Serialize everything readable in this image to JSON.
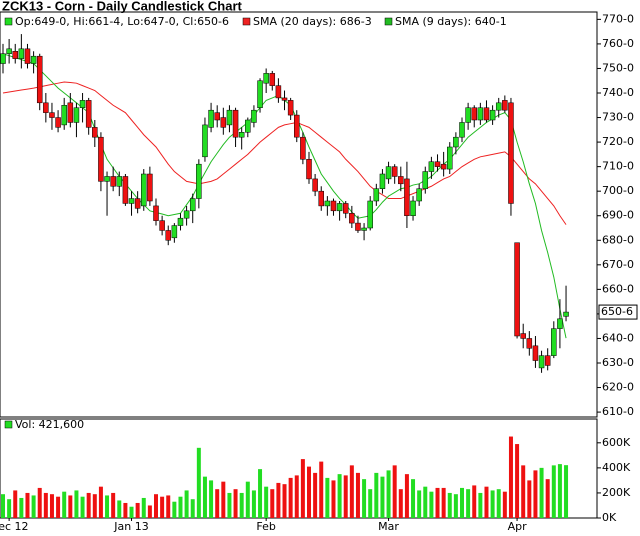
{
  "chart_data": [
    {
      "type": "candlestick",
      "title": "ZCK13 - Corn - Daily Candlestick Chart",
      "ohlc_label": "Op:649-0, Hi:661-4, Lo:647-0, Cl:650-6",
      "categories": [
        null,
        "Dec 12",
        null,
        null,
        null,
        null,
        null,
        null,
        null,
        null,
        null,
        null,
        null,
        null,
        null,
        null,
        null,
        null,
        null,
        null,
        null,
        "Jan 13",
        null,
        null,
        null,
        null,
        null,
        null,
        null,
        null,
        null,
        null,
        null,
        null,
        null,
        null,
        null,
        null,
        null,
        null,
        null,
        null,
        null,
        "Feb",
        null,
        null,
        null,
        null,
        null,
        null,
        null,
        null,
        null,
        null,
        null,
        null,
        null,
        null,
        null,
        null,
        null,
        null,
        null,
        "Mar",
        null,
        null,
        null,
        null,
        null,
        null,
        null,
        null,
        null,
        null,
        null,
        null,
        null,
        null,
        null,
        null,
        null,
        null,
        null,
        null,
        "Apr",
        null,
        null,
        null,
        null,
        null,
        null,
        null,
        null
      ],
      "open": [
        752,
        756,
        757,
        754,
        758,
        752,
        755,
        736,
        732,
        730,
        727,
        736,
        728,
        734,
        737,
        726,
        722,
        704,
        706,
        702,
        706,
        695,
        697,
        694,
        707,
        694,
        688,
        684,
        681,
        686,
        689,
        692,
        697,
        714,
        726,
        732,
        730,
        727,
        733,
        722,
        724,
        728,
        734,
        744,
        748,
        743,
        738,
        737,
        731,
        722,
        713,
        705,
        700,
        694,
        696,
        692,
        695,
        691,
        687,
        684,
        685,
        696,
        701,
        705,
        710,
        706,
        705,
        690,
        696,
        701,
        708,
        712,
        711,
        709,
        718,
        722,
        728,
        734,
        729,
        734,
        729,
        733,
        737,
        736,
        679,
        642,
        640,
        637,
        628,
        633,
        633,
        644,
        649
      ],
      "high": [
        760,
        762,
        760,
        764,
        760,
        757,
        756,
        740,
        736,
        733,
        738,
        740,
        736,
        740,
        738,
        729,
        724,
        708,
        710,
        708,
        707,
        700,
        700,
        709,
        710,
        697,
        690,
        686,
        687,
        691,
        694,
        699,
        713,
        730,
        736,
        735,
        734,
        735,
        734,
        726,
        730,
        735,
        746,
        750,
        749,
        746,
        741,
        738,
        733,
        724,
        716,
        707,
        702,
        698,
        697,
        696,
        696,
        694,
        690,
        687,
        698,
        703,
        709,
        712,
        711,
        710,
        712,
        698,
        703,
        710,
        714,
        715,
        716,
        720,
        724,
        730,
        736,
        735,
        736,
        737,
        735,
        738,
        739,
        738,
        679,
        646,
        643,
        641,
        635,
        636,
        647,
        656,
        661.5
      ],
      "low": [
        748,
        752,
        752,
        750,
        750,
        748,
        733,
        728,
        725,
        724,
        725,
        726,
        722,
        728,
        723,
        718,
        700,
        690,
        700,
        698,
        694,
        690,
        691,
        692,
        694,
        686,
        682,
        678,
        679,
        684,
        686,
        687,
        693,
        712,
        724,
        726,
        723,
        724,
        718,
        717,
        722,
        726,
        732,
        740,
        741,
        736,
        733,
        729,
        720,
        711,
        703,
        698,
        692,
        690,
        690,
        688,
        689,
        685,
        683,
        680,
        684,
        694,
        699,
        703,
        703,
        700,
        685,
        688,
        694,
        699,
        705,
        708,
        706,
        707,
        715,
        720,
        725,
        726,
        727,
        728,
        727,
        730,
        732,
        690,
        640,
        636,
        633,
        628,
        626,
        627,
        632,
        636,
        647
      ],
      "close": [
        756,
        758,
        754,
        758,
        752,
        755,
        736,
        732,
        730,
        726,
        735,
        728,
        734,
        737,
        726,
        722,
        704,
        706,
        702,
        706,
        695,
        697,
        693,
        707,
        696,
        688,
        684,
        680,
        686,
        689,
        692,
        697,
        711,
        727,
        733,
        729,
        726,
        733,
        722,
        724,
        729,
        733,
        745,
        748,
        743,
        738,
        737,
        731,
        722,
        713,
        705,
        700,
        694,
        696,
        692,
        695,
        691,
        687,
        684,
        685,
        696,
        701,
        707,
        710,
        706,
        703,
        690,
        696,
        701,
        708,
        712,
        710,
        709,
        718,
        722,
        728,
        734,
        729,
        734,
        729,
        733,
        736,
        733,
        695,
        641,
        640,
        636,
        631,
        633,
        629,
        644,
        648,
        650.75
      ],
      "up_color": "#22dd22",
      "down_color": "#ee1111",
      "ylim": [
        608,
        773
      ],
      "yticks": [
        {
          "value": 610,
          "label": "610-0"
        },
        {
          "value": 620,
          "label": "620-0"
        },
        {
          "value": 630,
          "label": "630-0"
        },
        {
          "value": 640,
          "label": "640-0"
        },
        {
          "value": 650,
          "label": "650-0"
        },
        {
          "value": 660,
          "label": "660-0"
        },
        {
          "value": 670,
          "label": "670-0"
        },
        {
          "value": 680,
          "label": "680-0"
        },
        {
          "value": 690,
          "label": "690-0"
        },
        {
          "value": 700,
          "label": "700-0"
        },
        {
          "value": 710,
          "label": "710-0"
        },
        {
          "value": 720,
          "label": "720-0"
        },
        {
          "value": 730,
          "label": "730-0"
        },
        {
          "value": 740,
          "label": "740-0"
        },
        {
          "value": 750,
          "label": "750-0"
        },
        {
          "value": 760,
          "label": "760-0"
        },
        {
          "value": 770,
          "label": "770-0"
        }
      ],
      "last_price": {
        "value": 650.75,
        "label": "650-6"
      },
      "series": [
        {
          "name": "SMA (20 days): 686-3",
          "color": "#ee2222",
          "values": [
            740,
            740.4,
            740.8,
            741.2,
            741.6,
            742,
            742.5,
            743,
            743.5,
            744,
            744.5,
            744.3,
            744,
            743,
            742,
            741,
            739,
            737,
            735,
            733.5,
            732,
            729,
            726,
            723,
            720.5,
            718,
            714.5,
            711,
            708,
            706,
            704,
            703.5,
            703,
            703.5,
            704,
            705,
            707,
            709,
            711,
            713,
            715,
            717.5,
            720,
            722,
            724,
            726,
            727,
            727.5,
            728,
            727,
            726,
            724,
            722,
            720,
            718,
            716,
            713,
            710.5,
            708,
            705,
            702,
            700,
            698.5,
            697,
            697,
            697,
            698,
            699,
            700,
            701,
            702,
            703.5,
            705,
            706,
            708,
            710,
            711.5,
            713,
            714,
            714.5,
            715,
            715.5,
            716,
            714,
            711,
            708,
            705,
            703,
            700,
            697,
            694,
            690,
            686.375
          ]
        },
        {
          "name": "SMA (9 days): 640-1",
          "color": "#22bb22",
          "values": [
            756,
            755.2,
            754.4,
            753.6,
            752.8,
            752,
            749.5,
            747,
            744.5,
            742,
            740,
            738,
            736,
            734,
            732,
            725.5,
            719,
            713,
            709.5,
            706,
            703,
            700,
            697,
            694.5,
            692,
            691.3,
            690.7,
            690,
            690.5,
            691,
            694.5,
            698,
            703,
            707.5,
            712,
            715.5,
            719,
            722,
            724,
            726,
            728,
            731,
            734,
            737,
            738,
            739,
            737,
            735,
            729.5,
            724,
            718,
            712.5,
            707,
            703.5,
            700,
            697,
            694.5,
            691.5,
            689,
            689.5,
            690,
            692.5,
            695.5,
            698,
            699.5,
            701,
            701.5,
            702.5,
            703,
            704.5,
            706,
            708.5,
            711,
            713,
            716,
            719,
            722,
            724,
            726,
            728,
            729.5,
            731,
            732,
            729,
            720,
            712,
            703,
            695,
            684,
            675,
            665,
            652,
            640.125
          ]
        }
      ]
    },
    {
      "type": "bar",
      "title": "Vol: 421,600",
      "values": [
        190000,
        150000,
        220000,
        160000,
        200000,
        180000,
        240000,
        200000,
        190000,
        170000,
        210000,
        180000,
        220000,
        170000,
        200000,
        190000,
        250000,
        180000,
        200000,
        140000,
        120000,
        90000,
        120000,
        160000,
        100000,
        190000,
        170000,
        180000,
        130000,
        170000,
        220000,
        150000,
        560000,
        330000,
        300000,
        230000,
        290000,
        200000,
        230000,
        200000,
        290000,
        220000,
        390000,
        250000,
        230000,
        280000,
        270000,
        320000,
        340000,
        470000,
        410000,
        360000,
        450000,
        320000,
        300000,
        350000,
        340000,
        420000,
        360000,
        310000,
        230000,
        360000,
        330000,
        380000,
        420000,
        230000,
        350000,
        310000,
        220000,
        250000,
        210000,
        240000,
        240000,
        200000,
        190000,
        240000,
        230000,
        260000,
        200000,
        250000,
        220000,
        230000,
        210000,
        650000,
        590000,
        420000,
        300000,
        380000,
        400000,
        310000,
        420000,
        430000,
        421600
      ],
      "ylim": [
        0,
        790000
      ],
      "yticks": [
        {
          "value": 0,
          "label": "0K"
        },
        {
          "value": 200000,
          "label": "200K"
        },
        {
          "value": 400000,
          "label": "400K"
        },
        {
          "value": 600000,
          "label": "600K"
        }
      ]
    }
  ]
}
